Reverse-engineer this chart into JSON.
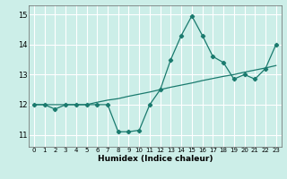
{
  "xlabel": "Humidex (Indice chaleur)",
  "bg_color": "#cceee8",
  "line_color": "#1a7a6e",
  "grid_color": "#ffffff",
  "x_data": [
    0,
    1,
    2,
    3,
    4,
    5,
    6,
    7,
    8,
    9,
    10,
    11,
    12,
    13,
    14,
    15,
    16,
    17,
    18,
    19,
    20,
    21,
    22,
    23
  ],
  "y_main": [
    12.0,
    12.0,
    11.85,
    12.0,
    12.0,
    12.0,
    12.0,
    12.0,
    11.1,
    11.1,
    11.15,
    12.0,
    12.5,
    13.5,
    14.3,
    14.95,
    14.3,
    13.6,
    13.4,
    12.85,
    13.0,
    12.85,
    13.2,
    14.0
  ],
  "y_trend": [
    12.0,
    12.0,
    12.0,
    12.0,
    12.0,
    12.0,
    12.08,
    12.15,
    12.2,
    12.28,
    12.35,
    12.42,
    12.5,
    12.58,
    12.65,
    12.72,
    12.8,
    12.87,
    12.94,
    13.0,
    13.08,
    13.15,
    13.22,
    13.3
  ],
  "ylim": [
    10.6,
    15.3
  ],
  "yticks": [
    11,
    12,
    13,
    14,
    15
  ],
  "xlim": [
    -0.5,
    23.5
  ],
  "xticks": [
    0,
    1,
    2,
    3,
    4,
    5,
    6,
    7,
    8,
    9,
    10,
    11,
    12,
    13,
    14,
    15,
    16,
    17,
    18,
    19,
    20,
    21,
    22,
    23
  ]
}
